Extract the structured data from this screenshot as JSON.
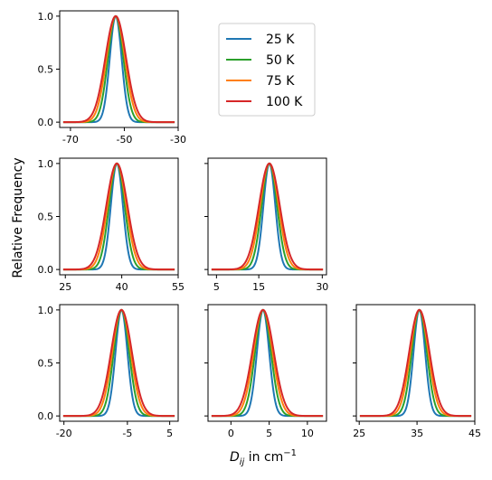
{
  "chart_data": {
    "type": "line",
    "ylabel": "Relative Frequency",
    "xlabel_main": "D",
    "xlabel_sub": "ij",
    "xlabel_rest": " in cm",
    "xlabel_sup": "−1",
    "legend_position": "top-center",
    "series": [
      {
        "name": "25 K",
        "color": "#1f77b4",
        "rel_width": 1.0
      },
      {
        "name": "50 K",
        "color": "#2ca02c",
        "rel_width": 1.3
      },
      {
        "name": "75 K",
        "color": "#ff7f0e",
        "rel_width": 1.55
      },
      {
        "name": "100 K",
        "color": "#d62728",
        "rel_width": 1.75
      }
    ],
    "yticks": [
      0.0,
      0.5,
      1.0
    ],
    "ytick_labels": [
      "0.0",
      "0.5",
      "1.0"
    ],
    "ylim": [
      -0.05,
      1.05
    ],
    "panels": [
      {
        "id": "p00",
        "row": 0,
        "col": 0,
        "xlim": [
          -74,
          -30
        ],
        "center": -53.2,
        "sigma": 2.2,
        "xticks": [
          -70,
          -50,
          -30
        ],
        "xtick_labels": [
          "-70",
          "-50",
          "-30"
        ],
        "show_ylabels": true
      },
      {
        "id": "p10",
        "row": 1,
        "col": 0,
        "xlim": [
          23.5,
          55
        ],
        "center": 38.7,
        "sigma": 1.6,
        "xticks": [
          25,
          40,
          55
        ],
        "xtick_labels": [
          "25",
          "40",
          "55"
        ],
        "show_ylabels": true
      },
      {
        "id": "p11",
        "row": 1,
        "col": 1,
        "xlim": [
          3,
          31
        ],
        "center": 17.5,
        "sigma": 1.4,
        "xticks": [
          5,
          15,
          30
        ],
        "xtick_labels": [
          "5",
          "15",
          "30"
        ],
        "show_ylabels": false
      },
      {
        "id": "p20",
        "row": 2,
        "col": 0,
        "xlim": [
          -21,
          7
        ],
        "center": -6.4,
        "sigma": 1.4,
        "xticks": [
          -20,
          -5,
          5
        ],
        "xtick_labels": [
          "-20",
          "-5",
          "5"
        ],
        "show_ylabels": true
      },
      {
        "id": "p21",
        "row": 2,
        "col": 1,
        "xlim": [
          -3,
          12.5
        ],
        "center": 4.2,
        "sigma": 0.8,
        "xticks": [
          0,
          5,
          10
        ],
        "xtick_labels": [
          "0",
          "5",
          "10"
        ],
        "show_ylabels": false
      },
      {
        "id": "p22",
        "row": 2,
        "col": 2,
        "xlim": [
          24.5,
          45
        ],
        "center": 35.4,
        "sigma": 1.0,
        "xticks": [
          25,
          35,
          45
        ],
        "xtick_labels": [
          "25",
          "35",
          "45"
        ],
        "show_ylabels": false
      }
    ]
  }
}
